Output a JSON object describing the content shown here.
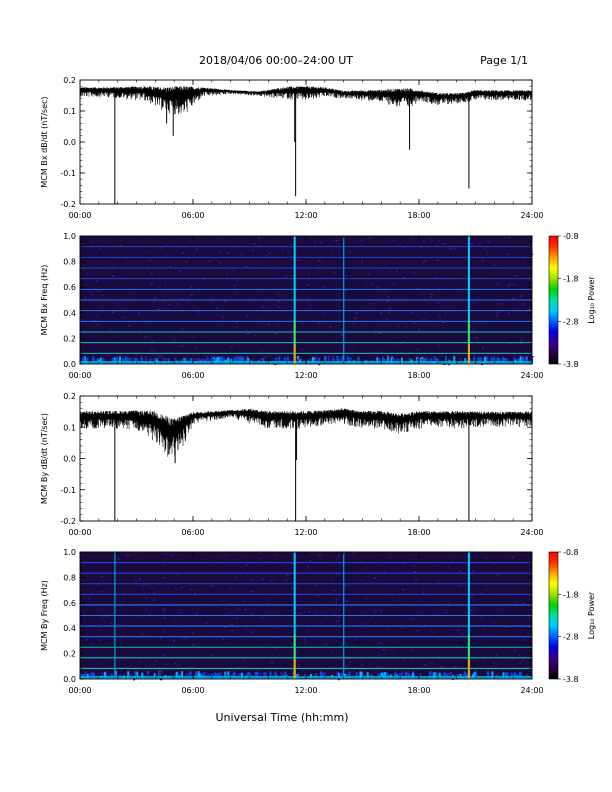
{
  "header": {
    "title": "2018/04/06  00:00–24:00 UT",
    "page": "Page 1/1"
  },
  "footer": {
    "xlabel": "Universal Time (hh:mm)"
  },
  "colors": {
    "trace": "#000000",
    "colorbar": [
      "#000000",
      "#2a004a",
      "#3a0090",
      "#0000e0",
      "#0060ff",
      "#00c8ff",
      "#00e0a0",
      "#00d000",
      "#a0e000",
      "#ffff00",
      "#ffa000",
      "#ff3000",
      "#ff0000"
    ]
  },
  "chart_data": [
    {
      "type": "line",
      "panel": "bx-derivative",
      "ylabel": "MCM Bx dB/dt (nT/sec)",
      "xlim": [
        0,
        24
      ],
      "ylim": [
        -0.2,
        0.2
      ],
      "xtick_labels": [
        "00:00",
        "06:00",
        "12:00",
        "18:00",
        "24:00"
      ],
      "ytick_labels": [
        "-0.2",
        "-0.1",
        "0.0",
        "0.1",
        "0.2"
      ],
      "series": [
        {
          "baseline_hours": [
            0,
            1.5,
            3.5,
            4.5,
            5.5,
            6.5,
            8,
            9.5,
            11,
            12,
            13,
            14,
            15,
            16,
            17,
            17.5,
            18,
            19,
            20,
            21,
            22,
            23,
            24
          ],
          "baseline_values": [
            0.17,
            0.17,
            0.17,
            0.16,
            0.16,
            0.17,
            0.165,
            0.16,
            0.17,
            0.17,
            0.17,
            0.16,
            0.16,
            0.16,
            0.16,
            0.16,
            0.16,
            0.15,
            0.15,
            0.16,
            0.16,
            0.16,
            0.16
          ],
          "noise_amplitude": [
            0.02,
            0.02,
            0.03,
            0.05,
            0.06,
            0.02,
            0.008,
            0.01,
            0.025,
            0.03,
            0.02,
            0.015,
            0.02,
            0.025,
            0.04,
            0.04,
            0.02,
            0.025,
            0.02,
            0.02,
            0.02,
            0.02,
            0.02
          ],
          "spikes": [
            {
              "t": 1.85,
              "v": -0.2
            },
            {
              "t": 4.6,
              "v": 0.06
            },
            {
              "t": 4.95,
              "v": 0.02
            },
            {
              "t": 11.4,
              "v": 0.0
            },
            {
              "t": 11.45,
              "v": -0.175
            },
            {
              "t": 17.5,
              "v": -0.025
            },
            {
              "t": 20.65,
              "v": -0.15
            }
          ]
        }
      ]
    },
    {
      "type": "heatmap",
      "panel": "bx-spectrogram",
      "ylabel": "MCM Bx Freq (Hz)",
      "xlim": [
        0,
        24
      ],
      "ylim": [
        0,
        1.0
      ],
      "xtick_labels": [
        "00:00",
        "06:00",
        "12:00",
        "18:00",
        "24:00"
      ],
      "ytick_labels": [
        "0.0",
        "0.2",
        "0.4",
        "0.6",
        "0.8",
        "1.0"
      ],
      "colorbar": {
        "label": "Log₁₀ Power",
        "range": [
          -3.8,
          -0.8
        ],
        "tick_labels": [
          "-0.8",
          "-1.8",
          "-2.8",
          "-3.8"
        ]
      },
      "harmonic_lines_hz": [
        0.083,
        0.167,
        0.25,
        0.333,
        0.417,
        0.5,
        0.583,
        0.667,
        0.75,
        0.833,
        0.917,
        1.0
      ],
      "vertical_bands_hours": [
        11.4,
        14.0,
        20.65
      ],
      "strong_bands_hours": [
        11.4,
        20.65
      ]
    },
    {
      "type": "line",
      "panel": "by-derivative",
      "ylabel": "MCM By dB/dt (nT/sec)",
      "xlim": [
        0,
        24
      ],
      "ylim": [
        -0.2,
        0.2
      ],
      "xtick_labels": [
        "00:00",
        "06:00",
        "12:00",
        "18:00",
        "24:00"
      ],
      "ytick_labels": [
        "-0.2",
        "-0.1",
        "0.0",
        "0.1",
        "0.2"
      ],
      "series": [
        {
          "baseline_hours": [
            0,
            1,
            2,
            3,
            4,
            4.5,
            5,
            5.5,
            6,
            7,
            8,
            9,
            10,
            11,
            12,
            13,
            14,
            15,
            16,
            17,
            18,
            19,
            20,
            21,
            22,
            23,
            24
          ],
          "baseline_values": [
            0.14,
            0.14,
            0.14,
            0.14,
            0.13,
            0.11,
            0.1,
            0.12,
            0.14,
            0.145,
            0.15,
            0.15,
            0.14,
            0.14,
            0.14,
            0.145,
            0.15,
            0.14,
            0.14,
            0.13,
            0.14,
            0.14,
            0.14,
            0.14,
            0.14,
            0.14,
            0.14
          ],
          "noise_amplitude": [
            0.035,
            0.035,
            0.035,
            0.04,
            0.06,
            0.08,
            0.08,
            0.06,
            0.025,
            0.02,
            0.015,
            0.03,
            0.035,
            0.035,
            0.035,
            0.03,
            0.03,
            0.035,
            0.035,
            0.04,
            0.035,
            0.03,
            0.035,
            0.03,
            0.03,
            0.03,
            0.03
          ],
          "spikes": [
            {
              "t": 1.85,
              "v": -0.2
            },
            {
              "t": 5.05,
              "v": -0.015
            },
            {
              "t": 11.45,
              "v": -0.2
            },
            {
              "t": 11.5,
              "v": -0.005
            },
            {
              "t": 20.65,
              "v": -0.2
            }
          ]
        }
      ]
    },
    {
      "type": "heatmap",
      "panel": "by-spectrogram",
      "ylabel": "MCM By Freq (Hz)",
      "xlim": [
        0,
        24
      ],
      "ylim": [
        0,
        1.0
      ],
      "xtick_labels": [
        "00:00",
        "06:00",
        "12:00",
        "18:00",
        "24:00"
      ],
      "ytick_labels": [
        "0.0",
        "0.2",
        "0.4",
        "0.6",
        "0.8",
        "1.0"
      ],
      "colorbar": {
        "label": "Log₁₀ Power",
        "range": [
          -3.8,
          -0.8
        ],
        "tick_labels": [
          "-0.8",
          "-1.8",
          "-2.8",
          "-3.8"
        ]
      },
      "harmonic_lines_hz": [
        0.083,
        0.167,
        0.25,
        0.333,
        0.417,
        0.5,
        0.583,
        0.667,
        0.75,
        0.833,
        0.917,
        1.0
      ],
      "vertical_bands_hours": [
        1.85,
        11.4,
        14.0,
        20.65
      ],
      "strong_bands_hours": [
        11.4,
        20.65
      ]
    }
  ]
}
